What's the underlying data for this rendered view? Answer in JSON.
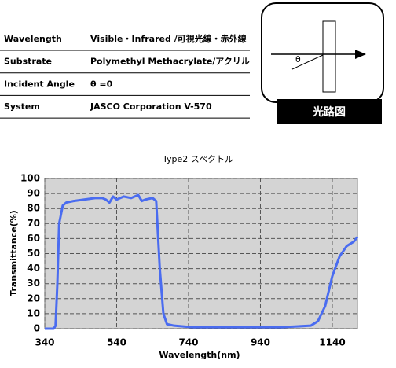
{
  "table": {
    "rows": [
      [
        "Wavelength",
        "Visible・Infrared /可視光線・赤外線"
      ],
      [
        "Substrate",
        "Polymethyl Methacrylate/アクリル"
      ],
      [
        "Incident Angle",
        "θ =0"
      ],
      [
        "System",
        "JASCO Corporation  V-570"
      ]
    ]
  },
  "diagram": {
    "angle_label": "θ",
    "caption": "光路図"
  },
  "chart_data": {
    "type": "line",
    "title": "Type2  スペクトル",
    "x_label": "Wavelength(nm)",
    "y_label": "Transmittance(%)",
    "x": [
      340,
      365,
      370,
      375,
      380,
      390,
      400,
      420,
      450,
      480,
      500,
      510,
      520,
      530,
      540,
      560,
      580,
      600,
      610,
      620,
      640,
      650,
      660,
      670,
      680,
      700,
      750,
      800,
      900,
      1000,
      1080,
      1100,
      1120,
      1140,
      1160,
      1180,
      1200,
      1210
    ],
    "series": [
      {
        "name": "Type2",
        "color": "#4a6cf0",
        "values": [
          0,
          0,
          2,
          30,
          70,
          82,
          84,
          85,
          86,
          87,
          87,
          86,
          84,
          88,
          86,
          88,
          87,
          89,
          85,
          86,
          87,
          85,
          40,
          10,
          3,
          2,
          1,
          1,
          1,
          1,
          2,
          5,
          15,
          35,
          48,
          55,
          58,
          61
        ]
      }
    ],
    "xlim": [
      340,
      1210
    ],
    "xticks": [
      340,
      540,
      740,
      940,
      1140
    ],
    "ylim": [
      0,
      100
    ],
    "yticks": [
      0,
      10,
      20,
      30,
      40,
      50,
      60,
      70,
      80,
      90,
      100
    ],
    "grid": true
  }
}
